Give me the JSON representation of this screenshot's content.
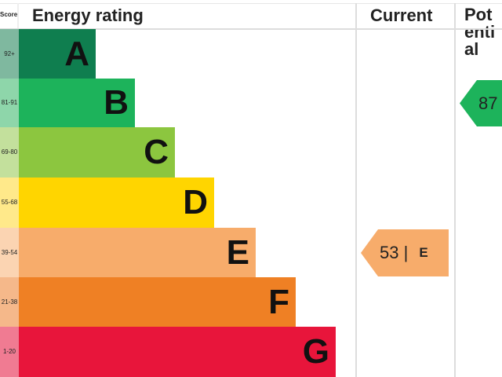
{
  "chart_data": {
    "type": "bar",
    "headers": {
      "score": "Score",
      "rating": "Energy rating",
      "current": "Current",
      "potential": "Potential"
    },
    "bands": [
      {
        "letter": "A",
        "range": "92+",
        "color": "#0f7e4f",
        "pale": "#7fb89f"
      },
      {
        "letter": "B",
        "range": "81-91",
        "color": "#1db35b",
        "pale": "#8ed6aa"
      },
      {
        "letter": "C",
        "range": "69-80",
        "color": "#8cc63f",
        "pale": "#c3e09c"
      },
      {
        "letter": "D",
        "range": "55-68",
        "color": "#ffd500",
        "pale": "#ffe98a"
      },
      {
        "letter": "E",
        "range": "39-54",
        "color": "#f7ac6b",
        "pale": "#fbd4b2"
      },
      {
        "letter": "F",
        "range": "21-38",
        "color": "#ef8024",
        "pale": "#f5b88a"
      },
      {
        "letter": "G",
        "range": "1-20",
        "color": "#e8153b",
        "pale": "#f07b92"
      }
    ],
    "current": {
      "value": 53,
      "band": "E",
      "label": "53 |",
      "band_label": "E",
      "color": "#f7ac6b"
    },
    "potential": {
      "value": 87,
      "band": "B",
      "label": "87",
      "color": "#1db35b"
    }
  }
}
